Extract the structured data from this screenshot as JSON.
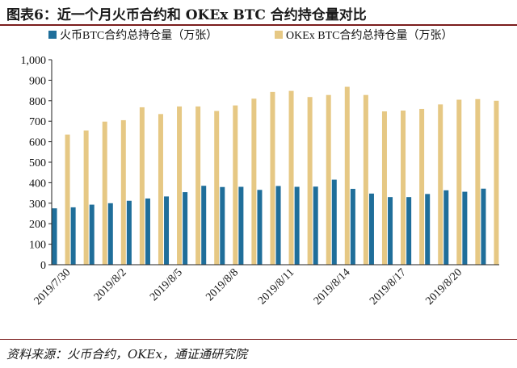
{
  "title": "图表6：近一个月火币合约和 OKEx BTC 合约持仓量对比",
  "source": "资料来源：火币合约，OKEx，通证通研究院",
  "colors": {
    "huobi": "#1f6e9a",
    "okex": "#e6c884",
    "rule": "#7a1c1c",
    "axis": "#222222"
  },
  "chart_data": {
    "type": "bar",
    "categories": [
      "2019/7/30",
      "2019/7/31",
      "2019/8/1",
      "2019/8/2",
      "2019/8/3",
      "2019/8/4",
      "2019/8/5",
      "2019/8/6",
      "2019/8/7",
      "2019/8/8",
      "2019/8/9",
      "2019/8/10",
      "2019/8/11",
      "2019/8/12",
      "2019/8/13",
      "2019/8/14",
      "2019/8/15",
      "2019/8/16",
      "2019/8/17",
      "2019/8/18",
      "2019/8/19",
      "2019/8/20",
      "2019/8/21",
      "2019/8/22"
    ],
    "tick_labels": [
      "2019/7/30",
      "2019/8/2",
      "2019/8/5",
      "2019/8/8",
      "2019/8/11",
      "2019/8/14",
      "2019/8/17",
      "2019/8/20"
    ],
    "series": [
      {
        "name": "火币BTC合约总持仓量（万张）",
        "values": [
          275,
          280,
          293,
          300,
          312,
          323,
          333,
          354,
          385,
          379,
          380,
          365,
          384,
          380,
          381,
          415,
          370,
          347,
          330,
          330,
          345,
          363,
          356,
          371
        ]
      },
      {
        "name": "OKEx BTC合约总持仓量（万张）",
        "values": [
          635,
          655,
          698,
          705,
          768,
          735,
          772,
          772,
          750,
          777,
          810,
          843,
          848,
          818,
          828,
          868,
          828,
          748,
          752,
          760,
          782,
          805,
          808,
          800
        ]
      }
    ],
    "yticks": [
      "0",
      "100",
      "200",
      "300",
      "400",
      "500",
      "600",
      "700",
      "800",
      "900",
      "1,000"
    ],
    "ylim": [
      0,
      1000
    ],
    "legend_position": "top",
    "grid": false
  }
}
